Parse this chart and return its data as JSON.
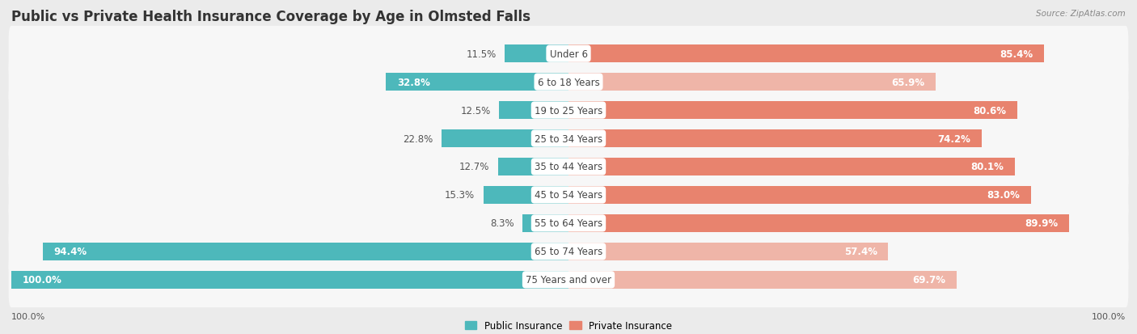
{
  "title": "Public vs Private Health Insurance Coverage by Age in Olmsted Falls",
  "source": "Source: ZipAtlas.com",
  "categories": [
    "Under 6",
    "6 to 18 Years",
    "19 to 25 Years",
    "25 to 34 Years",
    "35 to 44 Years",
    "45 to 54 Years",
    "55 to 64 Years",
    "65 to 74 Years",
    "75 Years and over"
  ],
  "public_values": [
    11.5,
    32.8,
    12.5,
    22.8,
    12.7,
    15.3,
    8.3,
    94.4,
    100.0
  ],
  "private_values": [
    85.4,
    65.9,
    80.6,
    74.2,
    80.1,
    83.0,
    89.9,
    57.4,
    69.7
  ],
  "public_color": "#4db8bb",
  "private_color_strong": "#e8836e",
  "private_color_light": "#efb5a8",
  "private_strong_threshold": 70.0,
  "bg_color": "#ebebeb",
  "row_bg_color": "#f7f7f7",
  "max_value": 100.0,
  "title_fontsize": 12,
  "label_fontsize": 8.5,
  "bar_height": 0.62,
  "legend_label_public": "Public Insurance",
  "legend_label_private": "Private Insurance",
  "pub_label_inside_threshold": 30,
  "priv_label_inside_threshold": 20
}
